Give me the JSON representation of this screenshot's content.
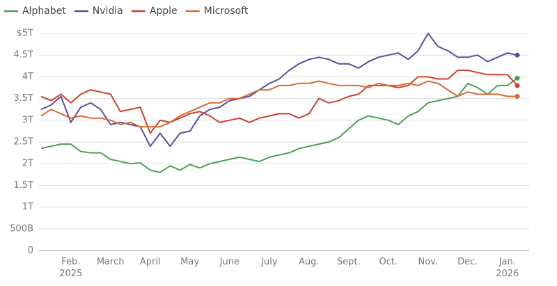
{
  "chart_data": {
    "type": "line",
    "categories": [
      null,
      null,
      null,
      "Feb.\n2025",
      null,
      null,
      null,
      "March",
      null,
      null,
      null,
      "April",
      null,
      null,
      null,
      "May",
      null,
      null,
      null,
      "June",
      null,
      null,
      null,
      "July",
      null,
      null,
      null,
      "Aug.",
      null,
      null,
      null,
      "Sept.",
      null,
      null,
      null,
      "Oct.",
      null,
      null,
      null,
      "Nov.",
      null,
      null,
      null,
      "Dec.",
      null,
      null,
      null,
      "Jan.\n2026",
      null
    ],
    "series": [
      {
        "name": "Alphabet",
        "color": "#4e9e55",
        "values": [
          2.35,
          2.4,
          2.45,
          2.45,
          2.28,
          2.25,
          2.25,
          2.1,
          2.05,
          2.0,
          2.02,
          1.85,
          1.8,
          1.95,
          1.85,
          1.98,
          1.9,
          2.0,
          2.05,
          2.1,
          2.15,
          2.1,
          2.05,
          2.15,
          2.2,
          2.25,
          2.35,
          2.4,
          2.45,
          2.5,
          2.6,
          2.8,
          3.0,
          3.1,
          3.05,
          3.0,
          2.9,
          3.1,
          3.2,
          3.4,
          3.45,
          3.5,
          3.55,
          3.85,
          3.75,
          3.6,
          3.8,
          3.8,
          3.97
        ]
      },
      {
        "name": "Nvidia",
        "color": "#5d4b9c",
        "values": [
          3.25,
          3.35,
          3.55,
          2.95,
          3.3,
          3.4,
          3.25,
          2.9,
          2.95,
          2.9,
          2.85,
          2.4,
          2.7,
          2.4,
          2.7,
          2.75,
          3.1,
          3.25,
          3.3,
          3.45,
          3.5,
          3.55,
          3.7,
          3.85,
          3.95,
          4.15,
          4.3,
          4.4,
          4.45,
          4.4,
          4.3,
          4.3,
          4.2,
          4.35,
          4.45,
          4.5,
          4.55,
          4.4,
          4.6,
          5.0,
          4.7,
          4.6,
          4.45,
          4.45,
          4.5,
          4.35,
          4.45,
          4.55,
          4.5
        ]
      },
      {
        "name": "Apple",
        "color": "#c9412f",
        "values": [
          3.55,
          3.45,
          3.6,
          3.4,
          3.6,
          3.7,
          3.65,
          3.6,
          3.2,
          3.25,
          3.3,
          2.7,
          3.0,
          2.95,
          3.05,
          3.15,
          3.2,
          3.1,
          2.95,
          3.0,
          3.05,
          2.95,
          3.05,
          3.1,
          3.15,
          3.15,
          3.05,
          3.15,
          3.5,
          3.4,
          3.45,
          3.55,
          3.6,
          3.8,
          3.8,
          3.8,
          3.75,
          3.8,
          4.0,
          4.0,
          3.95,
          3.95,
          4.15,
          4.15,
          4.1,
          4.05,
          4.05,
          4.05,
          3.8
        ]
      },
      {
        "name": "Microsoft",
        "color": "#d9692f",
        "values": [
          3.1,
          3.25,
          3.15,
          3.05,
          3.1,
          3.05,
          3.05,
          3.0,
          2.9,
          2.95,
          2.85,
          2.85,
          2.85,
          2.95,
          3.1,
          3.2,
          3.3,
          3.4,
          3.4,
          3.5,
          3.5,
          3.6,
          3.7,
          3.7,
          3.8,
          3.8,
          3.85,
          3.85,
          3.9,
          3.85,
          3.8,
          3.8,
          3.8,
          3.75,
          3.85,
          3.8,
          3.8,
          3.85,
          3.8,
          3.9,
          3.85,
          3.7,
          3.55,
          3.65,
          3.6,
          3.6,
          3.6,
          3.55,
          3.55
        ]
      }
    ],
    "ylim": [
      0,
      5
    ],
    "yticks": [
      0,
      {
        "value": 0.5,
        "label": "500B"
      },
      {
        "value": 1,
        "label": "1T"
      },
      {
        "value": 1.5,
        "label": "1.5T"
      },
      {
        "value": 2,
        "label": "2T"
      },
      {
        "value": 2.5,
        "label": "2.5T"
      },
      {
        "value": 3,
        "label": "3T"
      },
      {
        "value": 3.5,
        "label": "3.5T"
      },
      {
        "value": 4,
        "label": "4T"
      },
      {
        "value": 4.5,
        "label": "4.5T"
      },
      {
        "value": 5,
        "label": "$5T"
      }
    ],
    "grid": true,
    "legend": "top-left"
  }
}
